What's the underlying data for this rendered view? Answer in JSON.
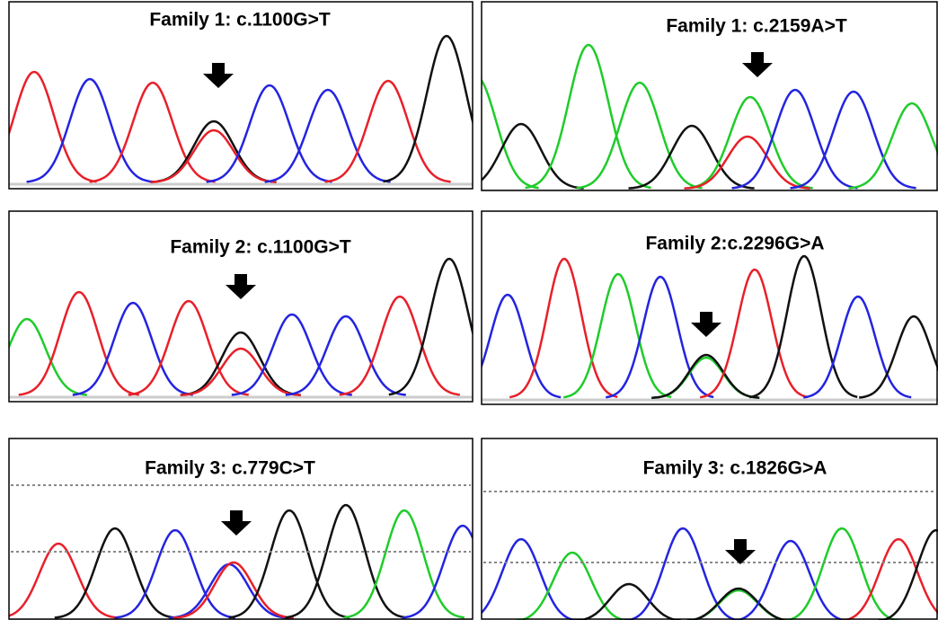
{
  "panels": [
    {
      "title": "Family 1: c.1100G>T"
    },
    {
      "title": "Family 1: c.2159A>T"
    },
    {
      "title": "Family 2: c.1100G>T"
    },
    {
      "title": "Family 2:c.2296G>A"
    },
    {
      "title": "Family 3: c.779C>T"
    },
    {
      "title": "Family 3: c.1826G>A"
    }
  ]
}
